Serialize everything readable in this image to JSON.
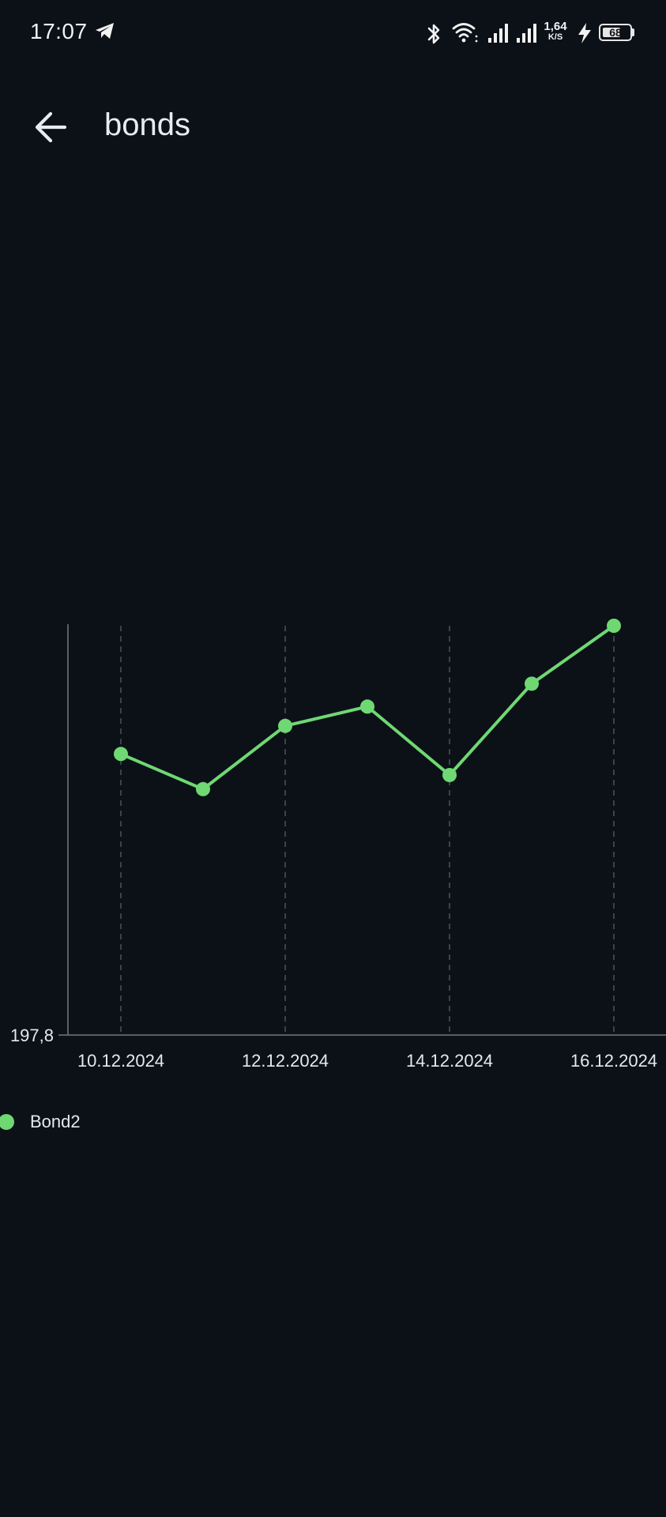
{
  "status_bar": {
    "time": "17:07",
    "net_speed_value": "1,64",
    "net_speed_unit": "K/S",
    "battery": "68",
    "battery_level": 0.68,
    "icons": [
      "telegram-icon",
      "bluetooth-icon",
      "wifi-icon",
      "signal-icon",
      "signal-icon",
      "charging-icon",
      "battery-icon"
    ]
  },
  "app_bar": {
    "title": "bonds",
    "back_icon": "arrow-left-icon"
  },
  "colors": {
    "background": "#0b1117",
    "series": "#6fd873",
    "axis": "#5a5f66",
    "grid": "#4a4f56",
    "text": "#e6e9ec"
  },
  "chart_data": {
    "type": "line",
    "x": [
      "10.12.2024",
      "11.12.2024",
      "12.12.2024",
      "13.12.2024",
      "14.12.2024",
      "15.12.2024",
      "16.12.2024"
    ],
    "series": [
      {
        "name": "Bond2",
        "values": [
          197.96,
          197.94,
          197.976,
          197.987,
          197.948,
          198.0,
          198.033
        ]
      }
    ],
    "x_tick_labels": [
      "10.12.2024",
      "12.12.2024",
      "14.12.2024",
      "16.12.2024"
    ],
    "y_tick_labels": [
      "197,8"
    ],
    "ylim": [
      197.8,
      198.033
    ],
    "grid": "vertical-dashed",
    "legend": "bottom-left"
  }
}
